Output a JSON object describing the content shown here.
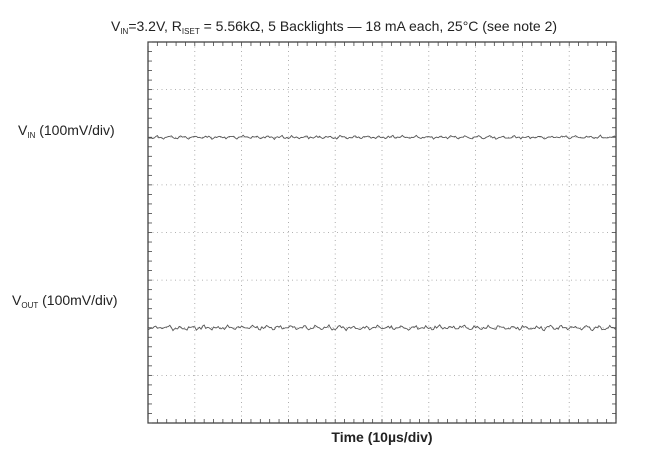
{
  "chart_data": {
    "type": "line",
    "title": {
      "prefix": "V",
      "vin_sub": "IN",
      "part2": "=3.2V, R",
      "riset_sub": "ISET",
      "part3": " = 5.56kΩ, 5 Backlights — 18 mA each, 25°C (see note 2)"
    },
    "xlabel": "Time (10µs/div)",
    "x_divisions": 10,
    "y_divisions": 8,
    "grid": true,
    "series": [
      {
        "id": "vin",
        "label_main": "V",
        "label_sub": "IN",
        "label_rest": " (100mV/div)",
        "baseline_div_from_top": 2.0,
        "ripple_pp_div": 0.07
      },
      {
        "id": "vout",
        "label_main": "V",
        "label_sub": "OUT",
        "label_rest": " (100mV/div)",
        "baseline_div_from_top": 6.0,
        "ripple_pp_div": 0.1
      }
    ],
    "trace_color": "#555555"
  }
}
